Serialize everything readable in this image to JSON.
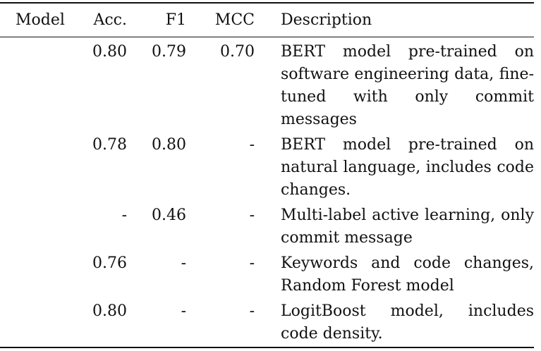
{
  "table": {
    "headers": [
      "Model",
      "Acc.",
      "F1",
      "MCC",
      "Description"
    ],
    "rows": [
      {
        "model": "",
        "acc": "0.80",
        "f1": "0.79",
        "mcc": "0.70",
        "description": "BERT model pre-trained on software engineering data, fine-tuned with only commit messages"
      },
      {
        "model": "",
        "acc": "0.78",
        "f1": "0.80",
        "mcc": "-",
        "description": "BERT model pre-trained on natural language, includes code changes."
      },
      {
        "model": "",
        "acc": "-",
        "f1": "0.46",
        "mcc": "-",
        "description": "Multi-label active learning, only commit message"
      },
      {
        "model": "",
        "acc": "0.76",
        "f1": "-",
        "mcc": "-",
        "description": "Keywords and code changes, Random Forest model"
      },
      {
        "model": "",
        "acc": "0.80",
        "f1": "-",
        "mcc": "-",
        "description": "LogitBoost model, includes code density."
      }
    ]
  }
}
